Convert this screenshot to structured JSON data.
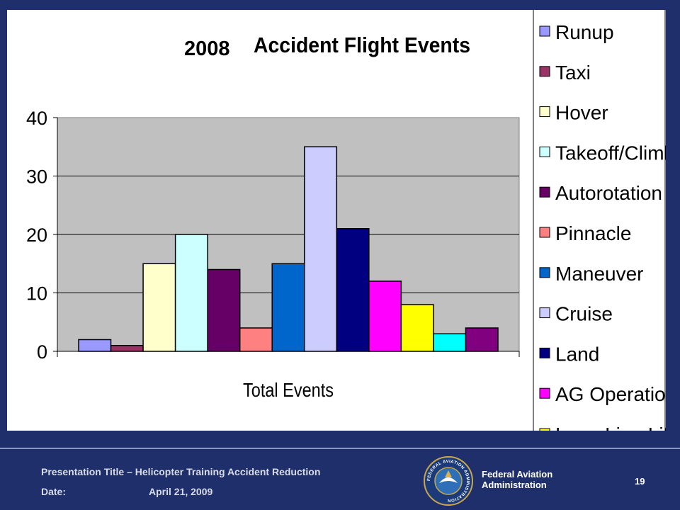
{
  "slide": {
    "footer_title": "Presentation Title – Helicopter Training Accident Reduction",
    "date_label": "Date:",
    "date_value": "April 21, 2009",
    "agency_line1": "Federal Aviation",
    "agency_line2": "Administration",
    "page_number": "19",
    "seal_text": "FEDERAL AVIATION ADMINISTRATION"
  },
  "colors": {
    "background": "#1f2f6b",
    "plot_area": "#c0c0c0"
  },
  "chart_data": {
    "type": "bar",
    "title_year": "2008",
    "title": "Accident Flight Events",
    "xlabel": "Total Events",
    "ylabel": "",
    "ylim": [
      0,
      40
    ],
    "yticks": [
      "0",
      "10",
      "20",
      "30",
      "40"
    ],
    "grid": true,
    "legend_position": "right",
    "categories": [
      "Total Events"
    ],
    "series": [
      {
        "name": "Runup",
        "values": [
          2
        ],
        "color": "#9999ff"
      },
      {
        "name": "Taxi",
        "values": [
          1
        ],
        "color": "#993366"
      },
      {
        "name": "Hover",
        "values": [
          15
        ],
        "color": "#ffffcc"
      },
      {
        "name": "Takeoff/Climb",
        "values": [
          20
        ],
        "color": "#ccffff"
      },
      {
        "name": "Autorotation",
        "values": [
          14
        ],
        "color": "#660066"
      },
      {
        "name": "Pinnacle",
        "values": [
          4
        ],
        "color": "#ff8080"
      },
      {
        "name": "Maneuver",
        "values": [
          15
        ],
        "color": "#0066cc"
      },
      {
        "name": "Cruise",
        "values": [
          35
        ],
        "color": "#ccccff"
      },
      {
        "name": "Land",
        "values": [
          21
        ],
        "color": "#000080"
      },
      {
        "name": "AG Operation",
        "values": [
          12
        ],
        "color": "#ff00ff"
      },
      {
        "name": "Long Line Lift",
        "values": [
          8
        ],
        "color": "#ffff00"
      },
      {
        "name": "",
        "values": [
          3
        ],
        "color": "#00ffff"
      },
      {
        "name": "",
        "values": [
          4
        ],
        "color": "#800080"
      }
    ]
  }
}
